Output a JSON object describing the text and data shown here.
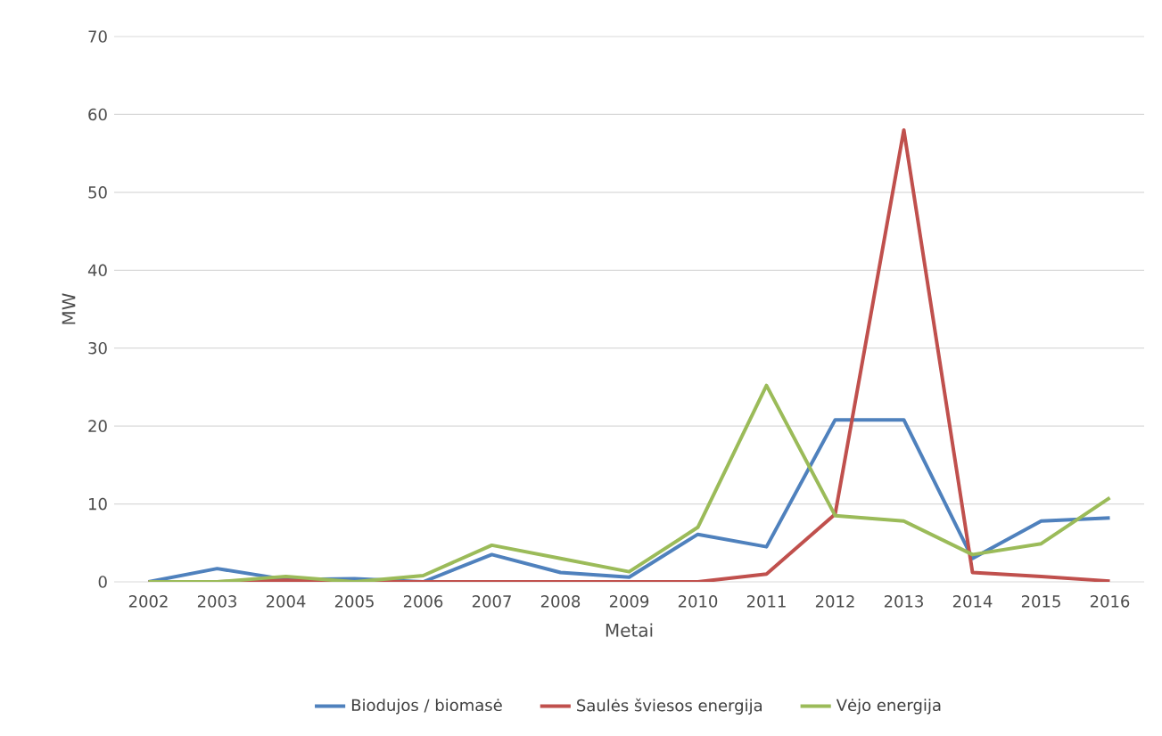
{
  "chart_data": {
    "type": "line",
    "xlabel": "Metai",
    "ylabel": "MW",
    "categories": [
      "2002",
      "2003",
      "2004",
      "2005",
      "2006",
      "2007",
      "2008",
      "2009",
      "2010",
      "2011",
      "2012",
      "2013",
      "2014",
      "2015",
      "2016"
    ],
    "series": [
      {
        "name": "Biodujos / biomasė",
        "color": "#4f81bd",
        "values": [
          0,
          1.7,
          0.3,
          0.4,
          0,
          3.5,
          1.2,
          0.6,
          6.1,
          4.5,
          20.8,
          20.8,
          3.0,
          7.8,
          8.2
        ]
      },
      {
        "name": "Saulės šviesos energija",
        "color": "#c0504d",
        "values": [
          0,
          0,
          0.2,
          0,
          0,
          0,
          0,
          0,
          0,
          1,
          8.7,
          58,
          1.2,
          0.7,
          0.1
        ]
      },
      {
        "name": "Vėjo energija",
        "color": "#9bbb59",
        "values": [
          0,
          0,
          0.7,
          0,
          0.8,
          4.7,
          3,
          1.3,
          7,
          25.2,
          8.5,
          7.8,
          3.5,
          4.9,
          10.8
        ]
      }
    ],
    "ylim": [
      0,
      70
    ],
    "yticks": [
      0,
      10,
      20,
      30,
      40,
      50,
      60,
      70
    ],
    "grid": "y",
    "legend": "bottom",
    "marker": "none",
    "line_style": "solid"
  }
}
